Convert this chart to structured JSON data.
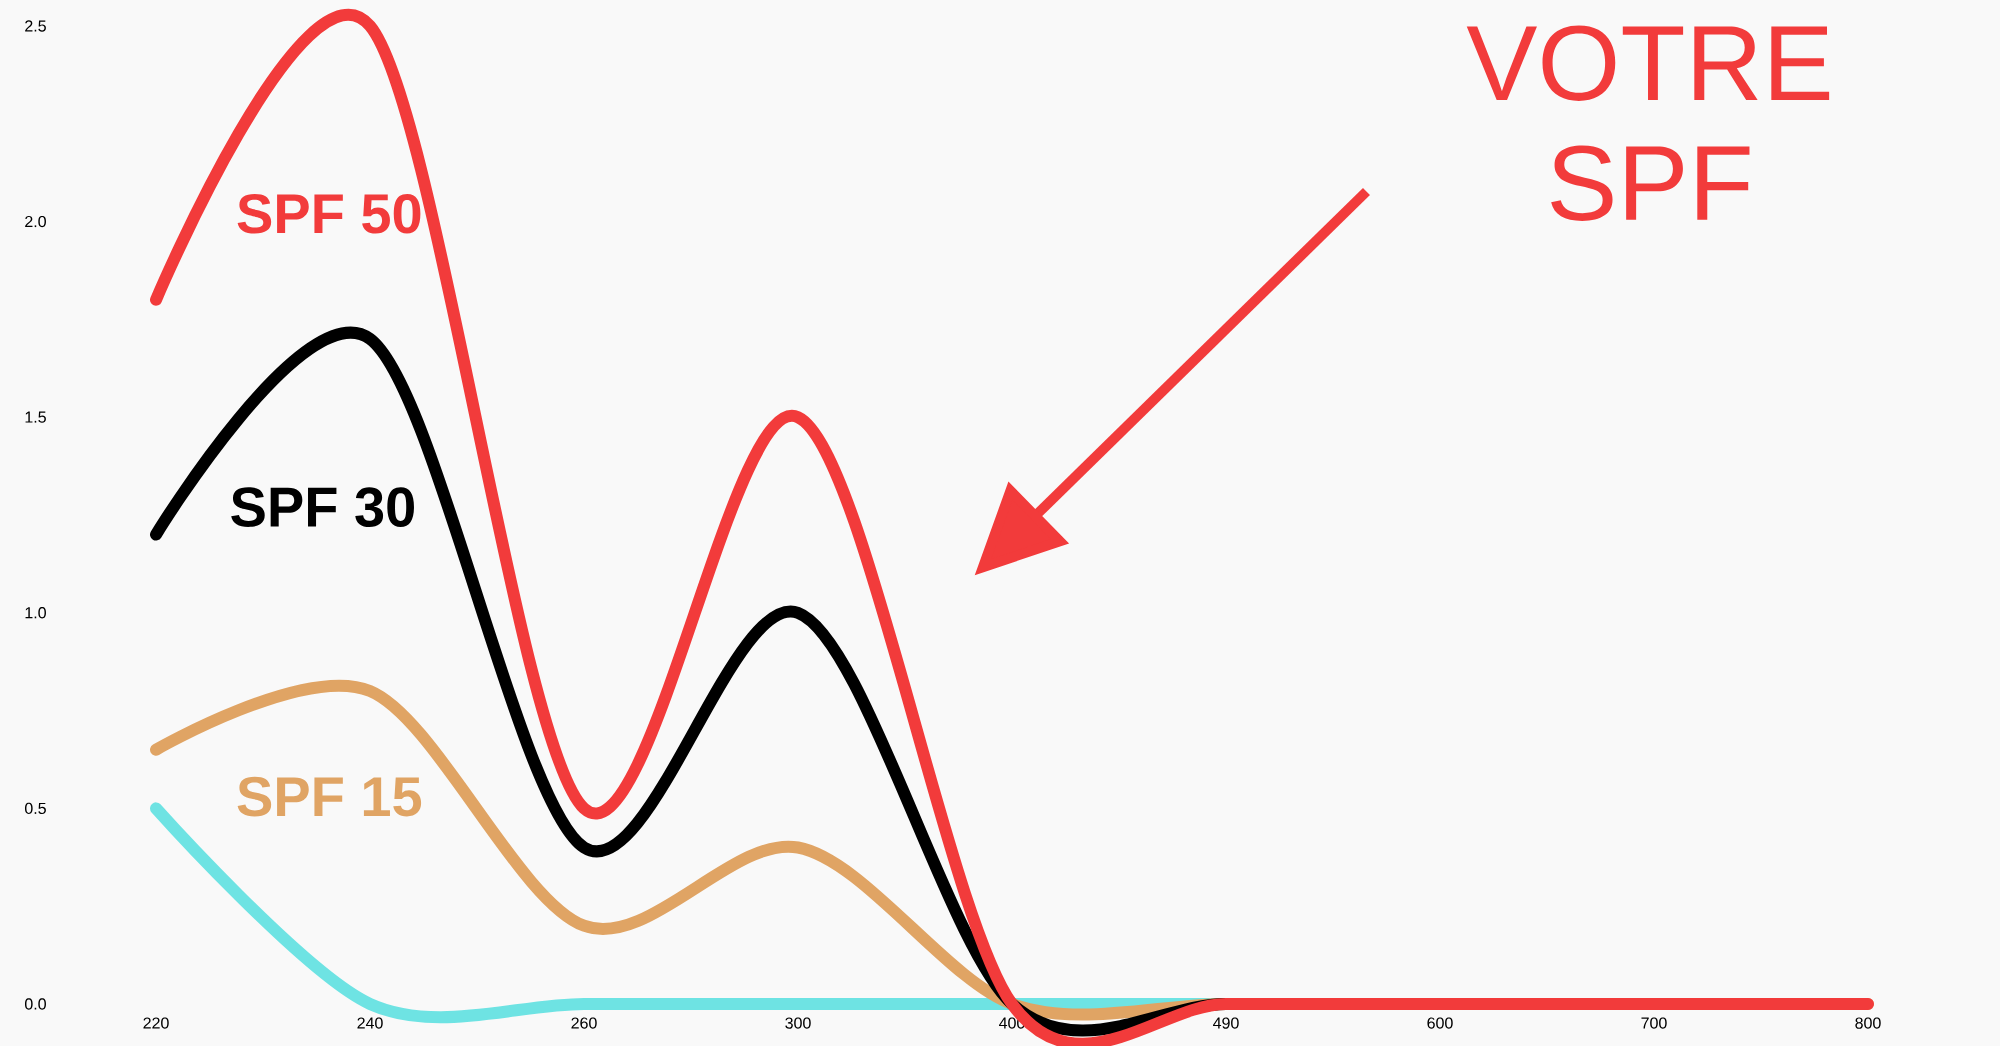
{
  "chart_data": {
    "type": "line",
    "categories": [
      "220",
      "240",
      "260",
      "300",
      "400",
      "490",
      "600",
      "700",
      "800"
    ],
    "series": [
      {
        "color": "#6ee3e3",
        "values": [
          0.5,
          0,
          0,
          0,
          0,
          0,
          0,
          null,
          null
        ]
      },
      {
        "name": "SPF 15",
        "color": "#e0a464",
        "values": [
          0.65,
          0.8,
          0.2,
          0.4,
          0,
          0,
          0,
          0,
          0
        ]
      },
      {
        "name": "SPF 30",
        "color": "#000000",
        "values": [
          1.2,
          1.7,
          0.4,
          1.0,
          0,
          0,
          0,
          null,
          null
        ]
      },
      {
        "name": "SPF 50",
        "color": "#f23b3b",
        "values": [
          1.8,
          2.5,
          0.5,
          1.5,
          0,
          0,
          0,
          0,
          0
        ]
      }
    ],
    "ylim": [
      0,
      2.5
    ],
    "yticks": [
      {
        "value": 0,
        "label": "0.0"
      },
      0.5,
      {
        "value": 1,
        "label": "1.0"
      },
      1.5,
      {
        "value": 2,
        "label": "2.0"
      },
      2.5
    ],
    "annotations": [
      "VOTRE SPF"
    ],
    "marker": "none",
    "line_style": "solid"
  }
}
